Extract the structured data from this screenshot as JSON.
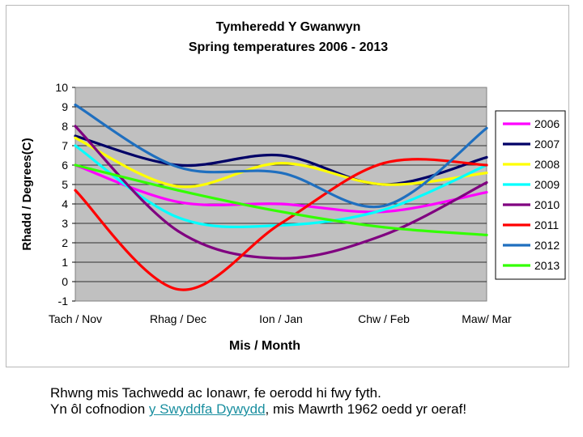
{
  "chart_data": {
    "type": "line",
    "title": "Tymheredd Y Gwanwyn",
    "subtitle": "Spring temperatures 2006 - 2013",
    "xlabel": "Mis / Month",
    "ylabel": "Rhadd / Degrees(C)",
    "categories": [
      "Tach / Nov",
      "Rhag / Dec",
      "Ion / Jan",
      "Chw / Feb",
      "Maw/ Mar"
    ],
    "ylim": [
      -1,
      10
    ],
    "yticks": [
      "-1",
      "0",
      "1",
      "2",
      "3",
      "4",
      "5",
      "6",
      "7",
      "8",
      "9",
      "10"
    ],
    "grid": true,
    "legend_position": "right",
    "plot_background": "#c0c0c0",
    "series": [
      {
        "name": "2006",
        "color": "#ff00ff",
        "values": [
          6.0,
          4.1,
          4.0,
          3.6,
          4.6
        ]
      },
      {
        "name": "2007",
        "color": "#000066",
        "values": [
          7.5,
          6.0,
          6.5,
          5.0,
          6.4
        ]
      },
      {
        "name": "2008",
        "color": "#ffff00",
        "values": [
          7.4,
          4.9,
          6.1,
          5.0,
          5.6
        ]
      },
      {
        "name": "2009",
        "color": "#00ffff",
        "values": [
          7.0,
          3.3,
          2.9,
          3.7,
          6.0
        ]
      },
      {
        "name": "2010",
        "color": "#800080",
        "values": [
          8.0,
          2.6,
          1.2,
          2.4,
          5.1
        ]
      },
      {
        "name": "2011",
        "color": "#ff0000",
        "values": [
          4.7,
          -0.4,
          3.0,
          6.1,
          6.0
        ]
      },
      {
        "name": "2012",
        "color": "#1f6fbf",
        "values": [
          9.1,
          5.9,
          5.6,
          3.9,
          7.9
        ]
      },
      {
        "name": "2013",
        "color": "#33ff00",
        "values": [
          6.0,
          4.7,
          3.6,
          2.8,
          2.4
        ]
      }
    ]
  },
  "caption": {
    "line1": "Rhwng mis Tachwedd ac Ionawr, fe oerodd hi fwy fyth.",
    "line2_before": "Yn ôl cofnodion ",
    "line2_link": "y Swyddfa Dywydd",
    "line2_after": ", mis Mawrth 1962 oedd yr oeraf!"
  }
}
